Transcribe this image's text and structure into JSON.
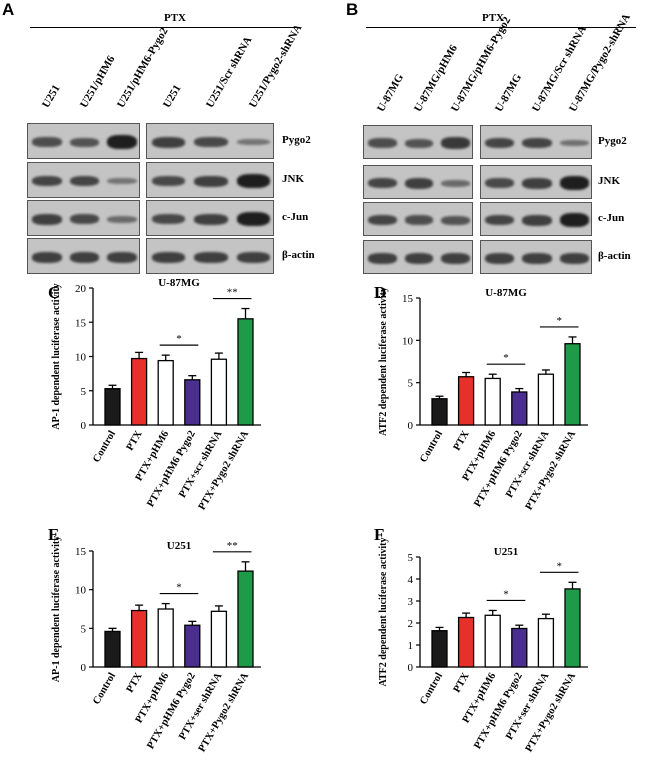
{
  "panel_A": {
    "letter": "A",
    "treatment": "PTX",
    "lanes_left": [
      "U251",
      "U251/pHM6",
      "U251/pHM6-Pygo2"
    ],
    "lanes_right": [
      "U251",
      "U251/Scr shRNA",
      "U251/Pygo2-shRNA"
    ],
    "rows": [
      "Pygo2",
      "JNK",
      "c-Jun",
      "β-actin"
    ]
  },
  "panel_B": {
    "letter": "B",
    "treatment": "PTX",
    "lanes_left": [
      "U-87MG",
      "U-87MG/pHM6",
      "U-87MG/pHM6-Pygo2"
    ],
    "lanes_right": [
      "U-87MG",
      "U-87MG/Scr shRNA",
      "U-87MG/Pygo2-shRNA"
    ],
    "rows": [
      "Pygo2",
      "JNK",
      "c-Jun",
      "β-actin"
    ]
  },
  "chart_data": [
    {
      "panel": "C",
      "type": "bar",
      "title": "U-87MG",
      "ylabel": "AP-1 dependent luciferase activity",
      "categories": [
        "Control",
        "PTX",
        "PTX+pHM6",
        "PTX+pHM6 Pygo2",
        "PTX+scr shRNA",
        "PTX+Pygo2 shRNA"
      ],
      "values": [
        5.3,
        9.7,
        9.4,
        6.6,
        9.6,
        15.5
      ],
      "errors": [
        0.5,
        0.9,
        0.8,
        0.6,
        0.9,
        1.5
      ],
      "colors": [
        "#1a1a1a",
        "#e8302b",
        "#ffffff",
        "#4b2f8e",
        "#ffffff",
        "#1f9a48"
      ],
      "ylim": [
        0,
        20
      ],
      "ticks": [
        0,
        5,
        10,
        15,
        20
      ],
      "significance": [
        {
          "from": 2,
          "to": 3,
          "label": "*"
        },
        {
          "from": 4,
          "to": 5,
          "label": "**"
        }
      ]
    },
    {
      "panel": "D",
      "type": "bar",
      "title": "U-87MG",
      "ylabel": "ATF2 dependent luciferase activity",
      "categories": [
        "Control",
        "PTX",
        "PTX+pHM6",
        "PTX+pHM6 Pygo2",
        "PTX+scr shRNA",
        "PTX+Pygo2 shRNA"
      ],
      "values": [
        3.1,
        5.7,
        5.5,
        3.9,
        6.0,
        9.6
      ],
      "errors": [
        0.3,
        0.5,
        0.5,
        0.4,
        0.5,
        0.8
      ],
      "colors": [
        "#1a1a1a",
        "#e8302b",
        "#ffffff",
        "#4b2f8e",
        "#ffffff",
        "#1f9a48"
      ],
      "ylim": [
        0,
        15
      ],
      "ticks": [
        0,
        5,
        10,
        15
      ],
      "significance": [
        {
          "from": 2,
          "to": 3,
          "label": "*"
        },
        {
          "from": 4,
          "to": 5,
          "label": "*"
        }
      ]
    },
    {
      "panel": "E",
      "type": "bar",
      "title": "U251",
      "ylabel": "AP-1 dependent luciferase activity",
      "categories": [
        "Control",
        "PTX",
        "PTX+pHM6",
        "PTX+pHM6 Pygo2",
        "PTX+ser shRNA",
        "PTX+Pygo2 shRNA"
      ],
      "values": [
        4.6,
        7.3,
        7.5,
        5.4,
        7.2,
        12.4
      ],
      "errors": [
        0.4,
        0.7,
        0.7,
        0.5,
        0.7,
        1.2
      ],
      "colors": [
        "#1a1a1a",
        "#e8302b",
        "#ffffff",
        "#4b2f8e",
        "#ffffff",
        "#1f9a48"
      ],
      "ylim": [
        0,
        15
      ],
      "ticks": [
        0,
        5,
        10,
        15
      ],
      "significance": [
        {
          "from": 2,
          "to": 3,
          "label": "*"
        },
        {
          "from": 4,
          "to": 5,
          "label": "**"
        }
      ]
    },
    {
      "panel": "F",
      "type": "bar",
      "title": "U251",
      "ylabel": "ATF2 dependent luciferase activity",
      "categories": [
        "Control",
        "PTX",
        "PTX+pHM6",
        "PTX+pHM6 Pygo2",
        "PTX+ser shRNA",
        "PTX+Pygo2 shRNA"
      ],
      "values": [
        1.65,
        2.25,
        2.35,
        1.75,
        2.2,
        3.55
      ],
      "errors": [
        0.15,
        0.2,
        0.22,
        0.15,
        0.2,
        0.3
      ],
      "colors": [
        "#1a1a1a",
        "#e8302b",
        "#ffffff",
        "#4b2f8e",
        "#ffffff",
        "#1f9a48"
      ],
      "ylim": [
        0,
        5
      ],
      "ticks": [
        0,
        1,
        2,
        3,
        4,
        5
      ],
      "significance": [
        {
          "from": 2,
          "to": 3,
          "label": "*"
        },
        {
          "from": 4,
          "to": 5,
          "label": "*"
        }
      ]
    }
  ]
}
